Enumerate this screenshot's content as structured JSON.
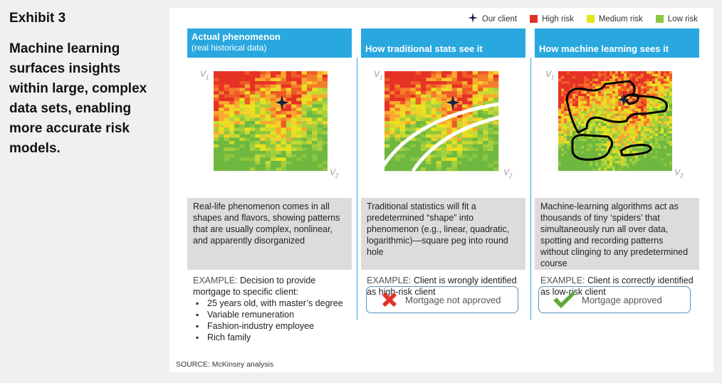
{
  "exhibit_label": "Exhibit 3",
  "subtitle": "Machine learning surfaces insights within large, complex data sets, enabling more accurate risk models.",
  "legend": {
    "client": "Our client",
    "high": "High risk",
    "medium": "Medium risk",
    "low": "Low risk",
    "colors": {
      "client": "#1b1f4a",
      "high": "#e53225",
      "medium": "#e8e21d",
      "low": "#8dc63f"
    }
  },
  "axis": {
    "v1": "V",
    "v1_sub": "1",
    "v2": "V",
    "v2_sub": "2"
  },
  "columns": [
    {
      "title": "Actual phenomenon",
      "subtitle": "(real historical data)",
      "description": "Real-life phenomenon comes in all shapes and flavors, showing patterns that are usually complex, nonlinear, and apparently disorganized",
      "example_label": "EXAMPLE:",
      "example_text": "Decision to provide mortgage to specific client:",
      "bullets": [
        "25 years old, with master’s degree",
        "Variable remuneration",
        "Fashion-industry employee",
        "Rich family"
      ]
    },
    {
      "title": "How traditional stats see it",
      "description": "Traditional statistics will fit a predetermined “shape” into phenomenon (e.g., linear, quadratic, logarithmic)—square peg into round hole",
      "example_label": "EXAMPLE:",
      "example_text": "Client is wrongly identified as high-risk client",
      "result": "Mortgage not approved",
      "result_icon": "red-x-icon"
    },
    {
      "title": "How machine learning sees it",
      "description": "Machine-learning algorithms act as thousands of tiny ‘spiders’ that simultaneously run all over data, spotting and recording patterns without clinging to any predetermined course",
      "example_label": "EXAMPLE:",
      "example_text": "Client is correctly identified as low-risk client",
      "result": "Mortgage approved",
      "result_icon": "green-check-icon"
    }
  ],
  "source": "SOURCE: McKinsey analysis"
}
